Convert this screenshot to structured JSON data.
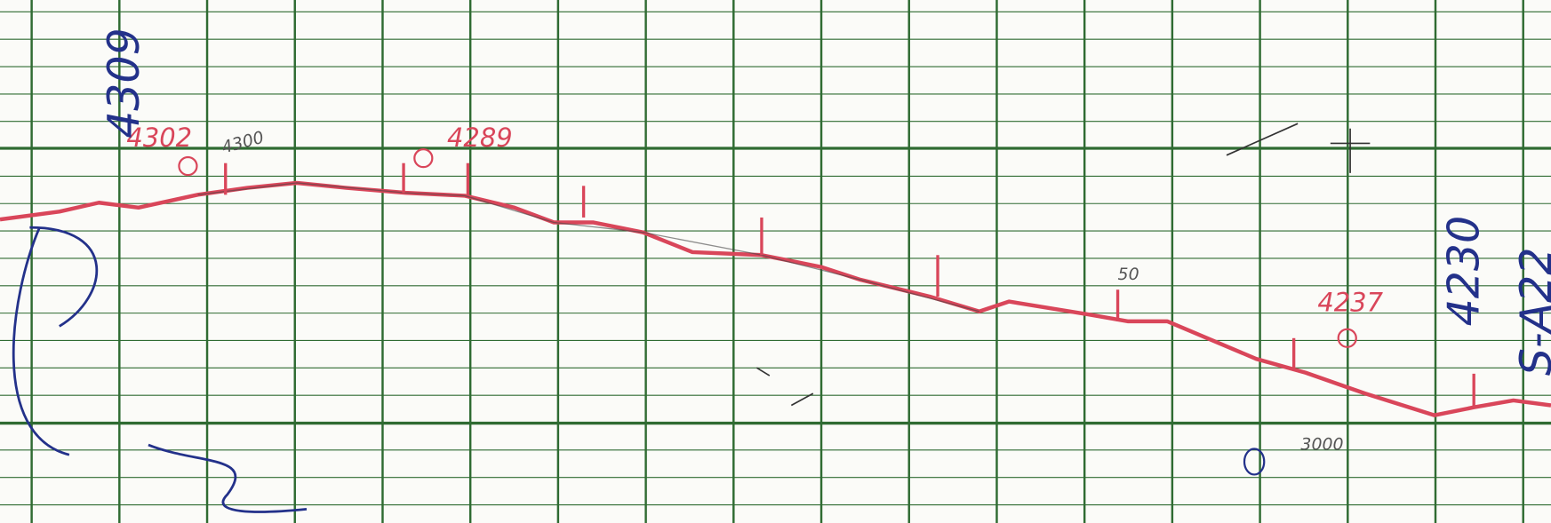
{
  "annotations": {
    "red": [
      "4302",
      "4289",
      "4237"
    ],
    "pencil": [
      "4300",
      "3000",
      "50"
    ],
    "blue": [
      "4309",
      "4230",
      "S-A22"
    ]
  }
}
